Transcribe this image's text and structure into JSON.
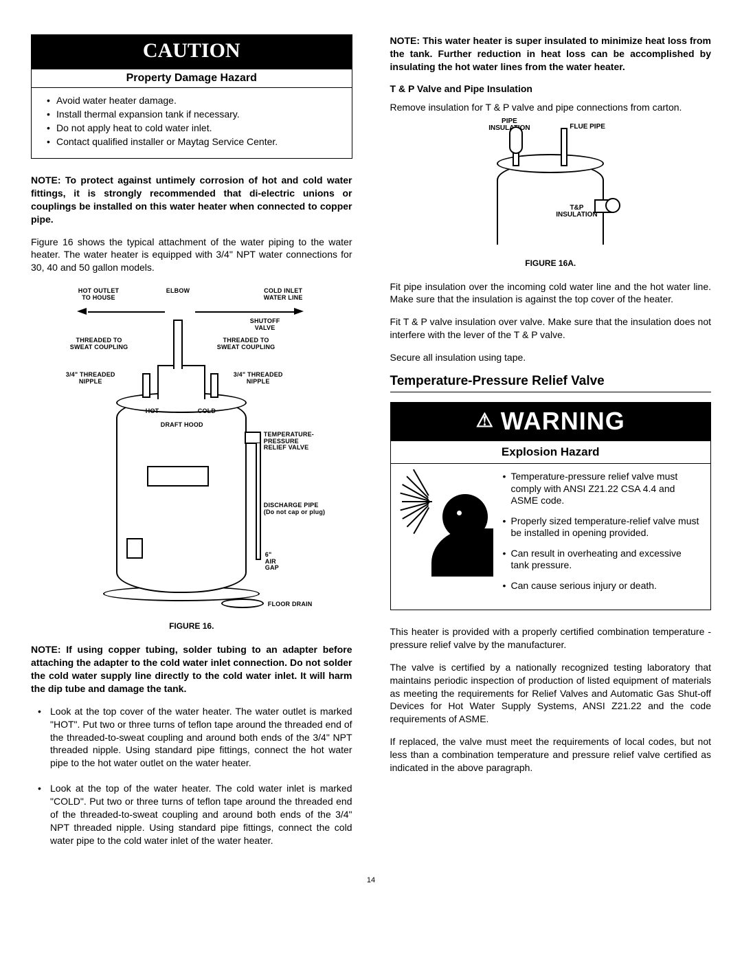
{
  "page_number": "14",
  "caution": {
    "title": "CAUTION",
    "subtitle": "Property Damage Hazard",
    "items": [
      "Avoid water heater damage.",
      "Install thermal expansion tank if necessary.",
      "Do not apply heat to cold water inlet.",
      "Contact qualified installer or Maytag Service Center."
    ]
  },
  "left": {
    "note1": "NOTE: To protect against untimely corrosion of hot and cold water fittings, it is strongly recommended that di-electric unions or couplings be installed on this water heater when connected to copper pipe.",
    "para1": "Figure 16 shows the typical attachment of the water piping to the water heater.  The water heater is equipped with 3/4\" NPT water connections for 30, 40 and 50 gallon models.",
    "fig16": {
      "caption": "FIGURE 16.",
      "labels": {
        "hot_outlet": "HOT OUTLET\nTO HOUSE",
        "elbow": "ELBOW",
        "cold_inlet": "COLD INLET\nWATER LINE",
        "shutoff": "SHUTOFF\nVALVE",
        "threaded_l": "THREADED TO\nSWEAT COUPLING",
        "threaded_r": "THREADED TO\nSWEAT COUPLING",
        "nipple_l": "3/4\" THREADED\nNIPPLE",
        "nipple_r": "3/4\" THREADED\nNIPPLE",
        "hot": "HOT",
        "cold": "COLD",
        "draft": "DRAFT HOOD",
        "tprv": "TEMPERATURE-\nPRESSURE\nRELIEF VALVE",
        "discharge": "DISCHARGE PIPE\n(Do not cap or plug)",
        "airgap": "6\"\nAIR\nGAP",
        "floor": "FLOOR DRAIN"
      }
    },
    "note2": "NOTE: If using copper tubing, solder tubing to an adapter before attaching the adapter to the cold water inlet connection.  Do not solder the cold water supply line directly to the cold water inlet.  It will harm the dip tube and damage the tank.",
    "bullets": [
      "Look at the top cover of the water heater. The water outlet is marked \"HOT\". Put two or three turns of teflon tape around the threaded end of the threaded-to-sweat coupling and around both ends of the 3/4\" NPT threaded nipple. Using standard pipe fittings, connect the hot water pipe to the hot water outlet on the water heater.",
      "Look at the top of the water heater. The cold water inlet is marked \"COLD\". Put two or three turns of teflon tape around the threaded end of the threaded-to-sweat coupling and around both ends of the 3/4\" NPT threaded nipple. Using standard pipe fittings, connect the cold water pipe to the cold water inlet of the water heater."
    ]
  },
  "right": {
    "note3": "NOTE: This water heater is super insulated to minimize heat loss from the tank. Further reduction in heat loss can be accomplished by insulating the hot water lines from the water heater.",
    "sub1": "T & P Valve and Pipe Insulation",
    "para2": "Remove insulation for T & P valve and pipe connections from carton.",
    "fig16a": {
      "caption": "FIGURE 16A.",
      "labels": {
        "pipe_ins": "PIPE\nINSULATION",
        "flue": "FLUE PIPE",
        "tp_ins": "T&P\nINSULATION"
      }
    },
    "para3": "Fit pipe insulation over the incoming cold water line and the hot water line. Make sure that the insulation is against the top cover of the heater.",
    "para4": "Fit T & P valve insulation over valve. Make sure that the insulation does not interfere with the lever of the T & P valve.",
    "para5": "Secure all insulation using tape.",
    "section": "Temperature-Pressure Relief Valve",
    "warning": {
      "title": "WARNING",
      "subtitle": "Explosion Hazard",
      "items": [
        "Temperature-pressure relief valve must comply with ANSI Z21.22 CSA 4.4 and ASME code.",
        "Properly sized temperature-relief valve must be installed in opening provided.",
        "Can result in overheating and excessive tank pressure.",
        "Can cause serious injury or death."
      ]
    },
    "para6": "This heater is provided with a properly certified combination temperature - pressure relief valve by the manufacturer.",
    "para7": "The valve is certified by a nationally recognized testing laboratory that maintains periodic inspection of production of listed equipment of materials as meeting the requirements for Relief Valves and Automatic Gas Shut-off Devices for Hot Water Supply Systems, ANSI Z21.22 and the code requirements of ASME.",
    "para8": "If replaced, the valve must meet the requirements of local codes, but not less than a combination temperature and pressure relief valve certified as indicated in the above paragraph."
  }
}
